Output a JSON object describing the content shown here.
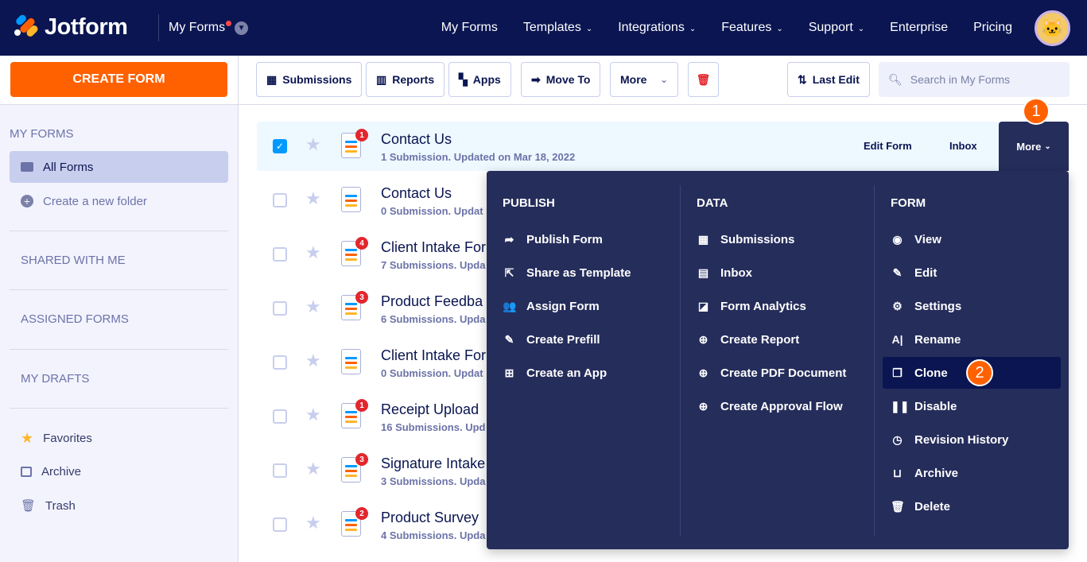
{
  "nav": {
    "brand": "Jotform",
    "context": "My Forms",
    "links": [
      {
        "label": "My Forms",
        "dd": false
      },
      {
        "label": "Templates",
        "dd": true
      },
      {
        "label": "Integrations",
        "dd": true
      },
      {
        "label": "Features",
        "dd": true
      },
      {
        "label": "Support",
        "dd": true
      },
      {
        "label": "Enterprise",
        "dd": false
      },
      {
        "label": "Pricing",
        "dd": false
      }
    ]
  },
  "sidebar": {
    "create": "CREATE FORM",
    "my_forms": "MY FORMS",
    "all_forms": "All Forms",
    "new_folder": "Create a new folder",
    "shared": "SHARED WITH ME",
    "assigned": "ASSIGNED FORMS",
    "drafts": "MY DRAFTS",
    "favorites": "Favorites",
    "archive": "Archive",
    "trash": "Trash"
  },
  "toolbar": {
    "submissions": "Submissions",
    "reports": "Reports",
    "apps": "Apps",
    "move_to": "Move To",
    "more": "More",
    "sort": "Last Edit",
    "search_placeholder": "Search in My Forms"
  },
  "forms": [
    {
      "title": "Contact Us",
      "sub": "1 Submission. Updated on Mar 18, 2022",
      "badge": "1",
      "checked": true
    },
    {
      "title": "Contact Us",
      "sub": "0 Submission. Updat",
      "badge": "",
      "checked": false
    },
    {
      "title": "Client Intake For",
      "sub": "7 Submissions. Upda",
      "badge": "4",
      "checked": false
    },
    {
      "title": "Product Feedba",
      "sub": "6 Submissions. Upda",
      "badge": "3",
      "checked": false
    },
    {
      "title": "Client Intake For",
      "sub": "0 Submission. Updat",
      "badge": "",
      "checked": false
    },
    {
      "title": "Receipt Upload",
      "sub": "16 Submissions. Upd",
      "badge": "1",
      "checked": false
    },
    {
      "title": "Signature Intake",
      "sub": "3 Submissions. Upda",
      "badge": "3",
      "checked": false
    },
    {
      "title": "Product Survey",
      "sub": "4 Submissions. Upda",
      "badge": "2",
      "checked": false
    }
  ],
  "row_actions": {
    "edit": "Edit Form",
    "inbox": "Inbox",
    "more": "More"
  },
  "menu": {
    "publish": {
      "title": "PUBLISH",
      "items": [
        {
          "label": "Publish Form",
          "icon": "share-arrow"
        },
        {
          "label": "Share as Template",
          "icon": "external-share"
        },
        {
          "label": "Assign Form",
          "icon": "users"
        },
        {
          "label": "Create Prefill",
          "icon": "pencil"
        },
        {
          "label": "Create an App",
          "icon": "app-grid"
        }
      ]
    },
    "data": {
      "title": "DATA",
      "items": [
        {
          "label": "Submissions",
          "icon": "table"
        },
        {
          "label": "Inbox",
          "icon": "inbox"
        },
        {
          "label": "Form Analytics",
          "icon": "analytics"
        },
        {
          "label": "Create Report",
          "icon": "report-plus"
        },
        {
          "label": "Create PDF Document",
          "icon": "pdf-plus"
        },
        {
          "label": "Create Approval Flow",
          "icon": "approval-plus"
        }
      ]
    },
    "form": {
      "title": "FORM",
      "items": [
        {
          "label": "View",
          "icon": "eye"
        },
        {
          "label": "Edit",
          "icon": "edit"
        },
        {
          "label": "Settings",
          "icon": "gear"
        },
        {
          "label": "Rename",
          "icon": "rename"
        },
        {
          "label": "Clone",
          "icon": "clone"
        },
        {
          "label": "Disable",
          "icon": "pause"
        },
        {
          "label": "Revision History",
          "icon": "clock"
        },
        {
          "label": "Archive",
          "icon": "archive-tray"
        },
        {
          "label": "Delete",
          "icon": "trash"
        }
      ]
    }
  },
  "steps": {
    "one": "1",
    "two": "2"
  },
  "colors": {
    "nav": "#0a1551",
    "accent": "#ff6100",
    "menu": "#252d5b",
    "badge": "#e3262d",
    "selected_row": "#edf8ff"
  }
}
